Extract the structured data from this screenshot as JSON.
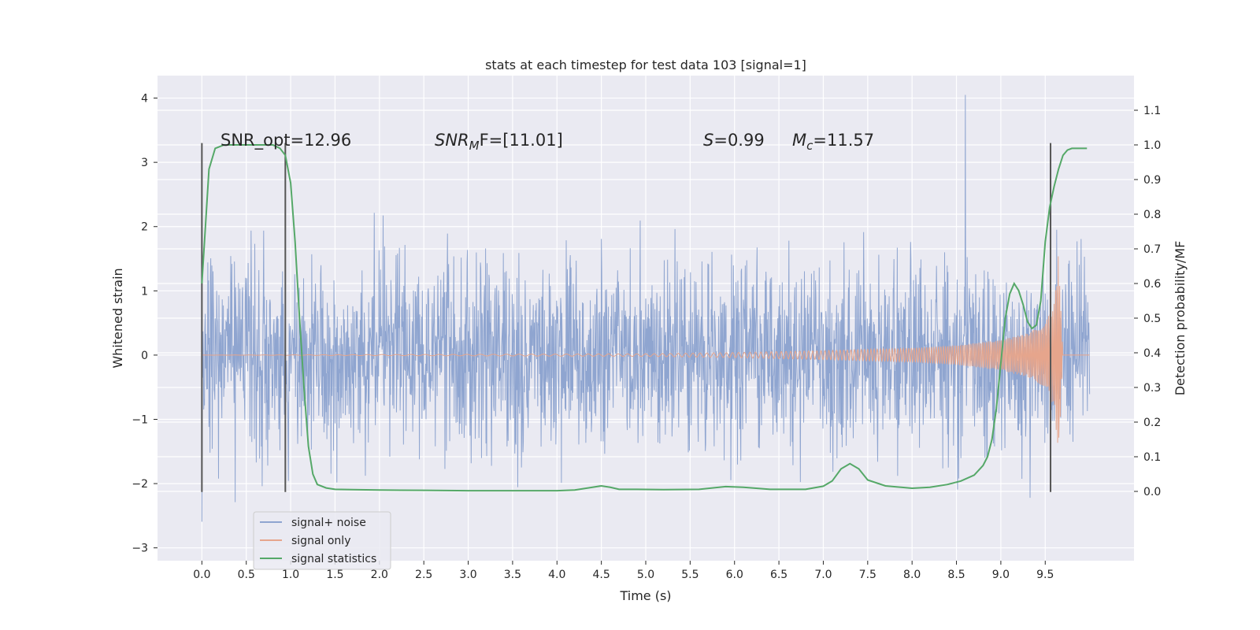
{
  "chart_data": {
    "type": "line",
    "title": "stats at each timestep for test data 103 [signal=1]",
    "xlabel": "Time (s)",
    "ylabel": "Whitened strain",
    "ylabel_right": "Detection probability/MF",
    "xlim": [
      -0.5,
      10.5
    ],
    "ylim": [
      -3.2,
      4.35
    ],
    "ylim_right": [
      -0.2,
      1.2
    ],
    "x_ticks": [
      "0.0",
      "0.5",
      "1.0",
      "1.5",
      "2.0",
      "2.5",
      "3.0",
      "3.5",
      "4.0",
      "4.5",
      "5.0",
      "5.5",
      "6.0",
      "6.5",
      "7.0",
      "7.5",
      "8.0",
      "8.5",
      "9.0",
      "9.5"
    ],
    "y_ticks": [
      "−3",
      "−2",
      "−1",
      "0",
      "1",
      "2",
      "3",
      "4"
    ],
    "y_ticks_right": [
      "0.0",
      "0.1",
      "0.2",
      "0.3",
      "0.4",
      "0.5",
      "0.6",
      "0.7",
      "0.8",
      "0.9",
      "1.0",
      "1.1"
    ],
    "annotations": {
      "snr_opt": "SNR_opt=12.96",
      "snr_mf_sym": "SNR",
      "snr_mf_sub": "M",
      "snr_mf_rest": "F=[11.01]",
      "s_sym": "S",
      "s_rest": "=0.99",
      "mc_sym": "M",
      "mc_sub": "c",
      "mc_rest": "=11.57"
    },
    "legend": {
      "placement": "lower-left",
      "entries": [
        "signal+ noise",
        "signal only",
        "signal statistics"
      ]
    },
    "colors": {
      "noise": "#8fa5d0",
      "signal": "#e6a58c",
      "stats": "#55a868",
      "background": "#eaeaf2",
      "grid": "#ffffff",
      "vline": "#555555"
    },
    "vlines_x": [
      0.0,
      0.94,
      9.56
    ],
    "vlines_y_range": [
      -2.13,
      3.3
    ],
    "noise": {
      "x_start": 0.0,
      "x_end": 10.0,
      "typical_amplitude": 1.1,
      "max_peak": 4.05,
      "min_trough": -2.9
    },
    "signal": {
      "x": [
        0.0,
        5.0,
        6.0,
        7.0,
        8.0,
        8.5,
        9.0,
        9.3,
        9.5,
        9.6,
        9.65,
        9.7,
        10.0
      ],
      "amplitude": [
        0.0,
        0.02,
        0.04,
        0.07,
        0.11,
        0.15,
        0.24,
        0.34,
        0.5,
        0.8,
        1.6,
        0.0,
        0.0
      ]
    },
    "series": [
      {
        "name": "signal statistics",
        "axis": "right",
        "x": [
          0.0,
          0.08,
          0.15,
          0.25,
          0.4,
          0.6,
          0.8,
          0.88,
          0.94,
          1.0,
          1.05,
          1.1,
          1.15,
          1.2,
          1.25,
          1.3,
          1.4,
          1.5,
          1.7,
          2.0,
          2.5,
          3.0,
          3.5,
          4.0,
          4.2,
          4.4,
          4.5,
          4.6,
          4.7,
          4.9,
          5.2,
          5.6,
          5.9,
          6.1,
          6.4,
          6.8,
          7.0,
          7.1,
          7.2,
          7.3,
          7.4,
          7.5,
          7.7,
          8.0,
          8.2,
          8.4,
          8.55,
          8.7,
          8.8,
          8.85,
          8.9,
          8.95,
          9.0,
          9.05,
          9.1,
          9.15,
          9.2,
          9.25,
          9.3,
          9.35,
          9.4,
          9.45,
          9.5,
          9.55,
          9.6,
          9.65,
          9.7,
          9.75,
          9.8,
          9.9,
          9.97
        ],
        "y": [
          0.6,
          0.93,
          0.99,
          1.0,
          1.0,
          1.0,
          1.0,
          0.99,
          0.97,
          0.89,
          0.72,
          0.5,
          0.3,
          0.13,
          0.05,
          0.02,
          0.01,
          0.006,
          0.005,
          0.004,
          0.003,
          0.002,
          0.002,
          0.002,
          0.004,
          0.012,
          0.016,
          0.012,
          0.006,
          0.006,
          0.005,
          0.006,
          0.014,
          0.012,
          0.006,
          0.006,
          0.015,
          0.03,
          0.065,
          0.08,
          0.065,
          0.033,
          0.016,
          0.009,
          0.012,
          0.02,
          0.03,
          0.047,
          0.075,
          0.1,
          0.15,
          0.24,
          0.37,
          0.5,
          0.57,
          0.6,
          0.58,
          0.54,
          0.49,
          0.47,
          0.48,
          0.55,
          0.72,
          0.82,
          0.88,
          0.93,
          0.97,
          0.985,
          0.99,
          0.99,
          0.99
        ]
      }
    ]
  }
}
